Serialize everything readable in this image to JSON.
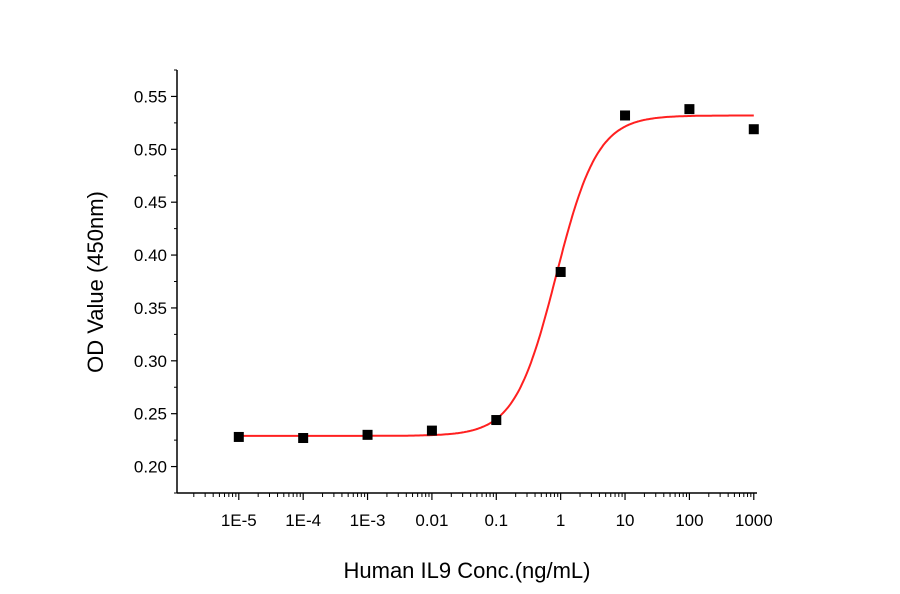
{
  "chart_data": {
    "type": "scatter",
    "title": "",
    "xlabel": "Human IL9 Conc.(ng/mL)",
    "ylabel": "OD Value (450nm)",
    "xscale": "log",
    "x_tick_labels": [
      "1E-5",
      "1E-4",
      "1E-3",
      "0.01",
      "0.1",
      "1",
      "10",
      "100",
      "1000"
    ],
    "x_tick_values": [
      1e-05,
      0.0001,
      0.001,
      0.01,
      0.1,
      1,
      10,
      100,
      1000
    ],
    "y_tick_labels": [
      "0.20",
      "0.25",
      "0.30",
      "0.35",
      "0.40",
      "0.45",
      "0.50",
      "0.55"
    ],
    "y_tick_values": [
      0.2,
      0.25,
      0.3,
      0.35,
      0.4,
      0.45,
      0.5,
      0.55
    ],
    "xlim_log10": [
      -5.96,
      3.05
    ],
    "ylim": [
      0.175,
      0.575
    ],
    "grid": false,
    "series": [
      {
        "name": "Measured",
        "marker": "square",
        "color": "#000000",
        "x": [
          1e-05,
          0.0001,
          0.001,
          0.01,
          0.1,
          1,
          10,
          100,
          1000
        ],
        "y": [
          0.228,
          0.227,
          0.23,
          0.234,
          0.244,
          0.384,
          0.532,
          0.538,
          0.519
        ]
      },
      {
        "name": "4PL fit",
        "line": true,
        "color": "#ff2020",
        "fit": {
          "bottom": 0.229,
          "top": 0.532,
          "ec50": 0.85,
          "hill": 1.35
        }
      }
    ]
  }
}
